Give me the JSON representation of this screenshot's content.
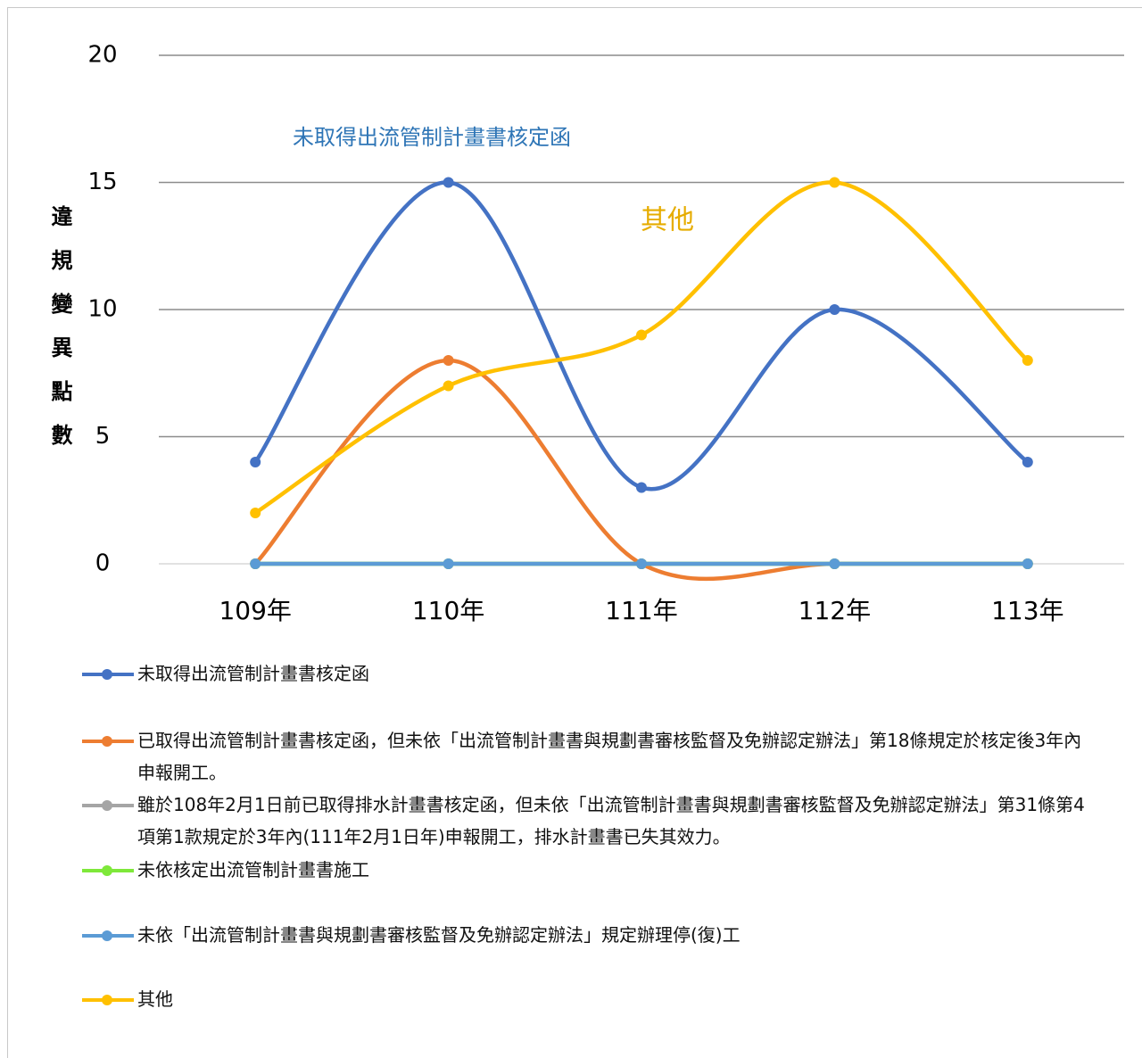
{
  "chart_data": {
    "type": "line",
    "y_label": "違規變異點數",
    "categories": [
      "109年",
      "110年",
      "111年",
      "112年",
      "113年"
    ],
    "series": [
      {
        "name": "未取得出流管制計畫書核定函",
        "color": "#4472c4",
        "values": [
          4,
          15,
          3,
          10,
          4
        ]
      },
      {
        "name": "已取得出流管制計畫書核定函，但未依「出流管制計畫書與規劃書審核監督及免辦認定辦法」第18條規定於核定後3年內申報開工。",
        "color": "#ed7d31",
        "values": [
          0,
          8,
          0,
          0,
          0
        ]
      },
      {
        "name": "雖於108年2月1日前已取得排水計畫書核定函，但未依「出流管制計畫書與規劃書審核監督及免辦認定辦法」第31條第4項第1款規定於3年內(111年2月1日年)申報開工，排水計畫書已失其效力。",
        "color": "#a5a5a5",
        "values": [
          0,
          0,
          0,
          0,
          0
        ]
      },
      {
        "name": "未依核定出流管制計畫書施工",
        "color": "#7ee83a",
        "values": [
          0,
          0,
          0,
          0,
          0
        ]
      },
      {
        "name": "未依「出流管制計畫書與規劃書審核監督及免辦認定辦法」規定辦理停(復)工",
        "color": "#5b9bd5",
        "values": [
          0,
          0,
          0,
          0,
          0
        ]
      },
      {
        "name": "其他",
        "color": "#ffc000",
        "values": [
          2,
          7,
          9,
          15,
          8
        ]
      }
    ],
    "annotations": [
      {
        "text": "未取得出流管制計畫書核定函",
        "color": "#2e75b6"
      },
      {
        "text": "其他",
        "color": "#e6ac00"
      }
    ],
    "ylim": [
      0,
      20
    ],
    "yticks": [
      0,
      5,
      10,
      15,
      20
    ],
    "grid": true
  }
}
